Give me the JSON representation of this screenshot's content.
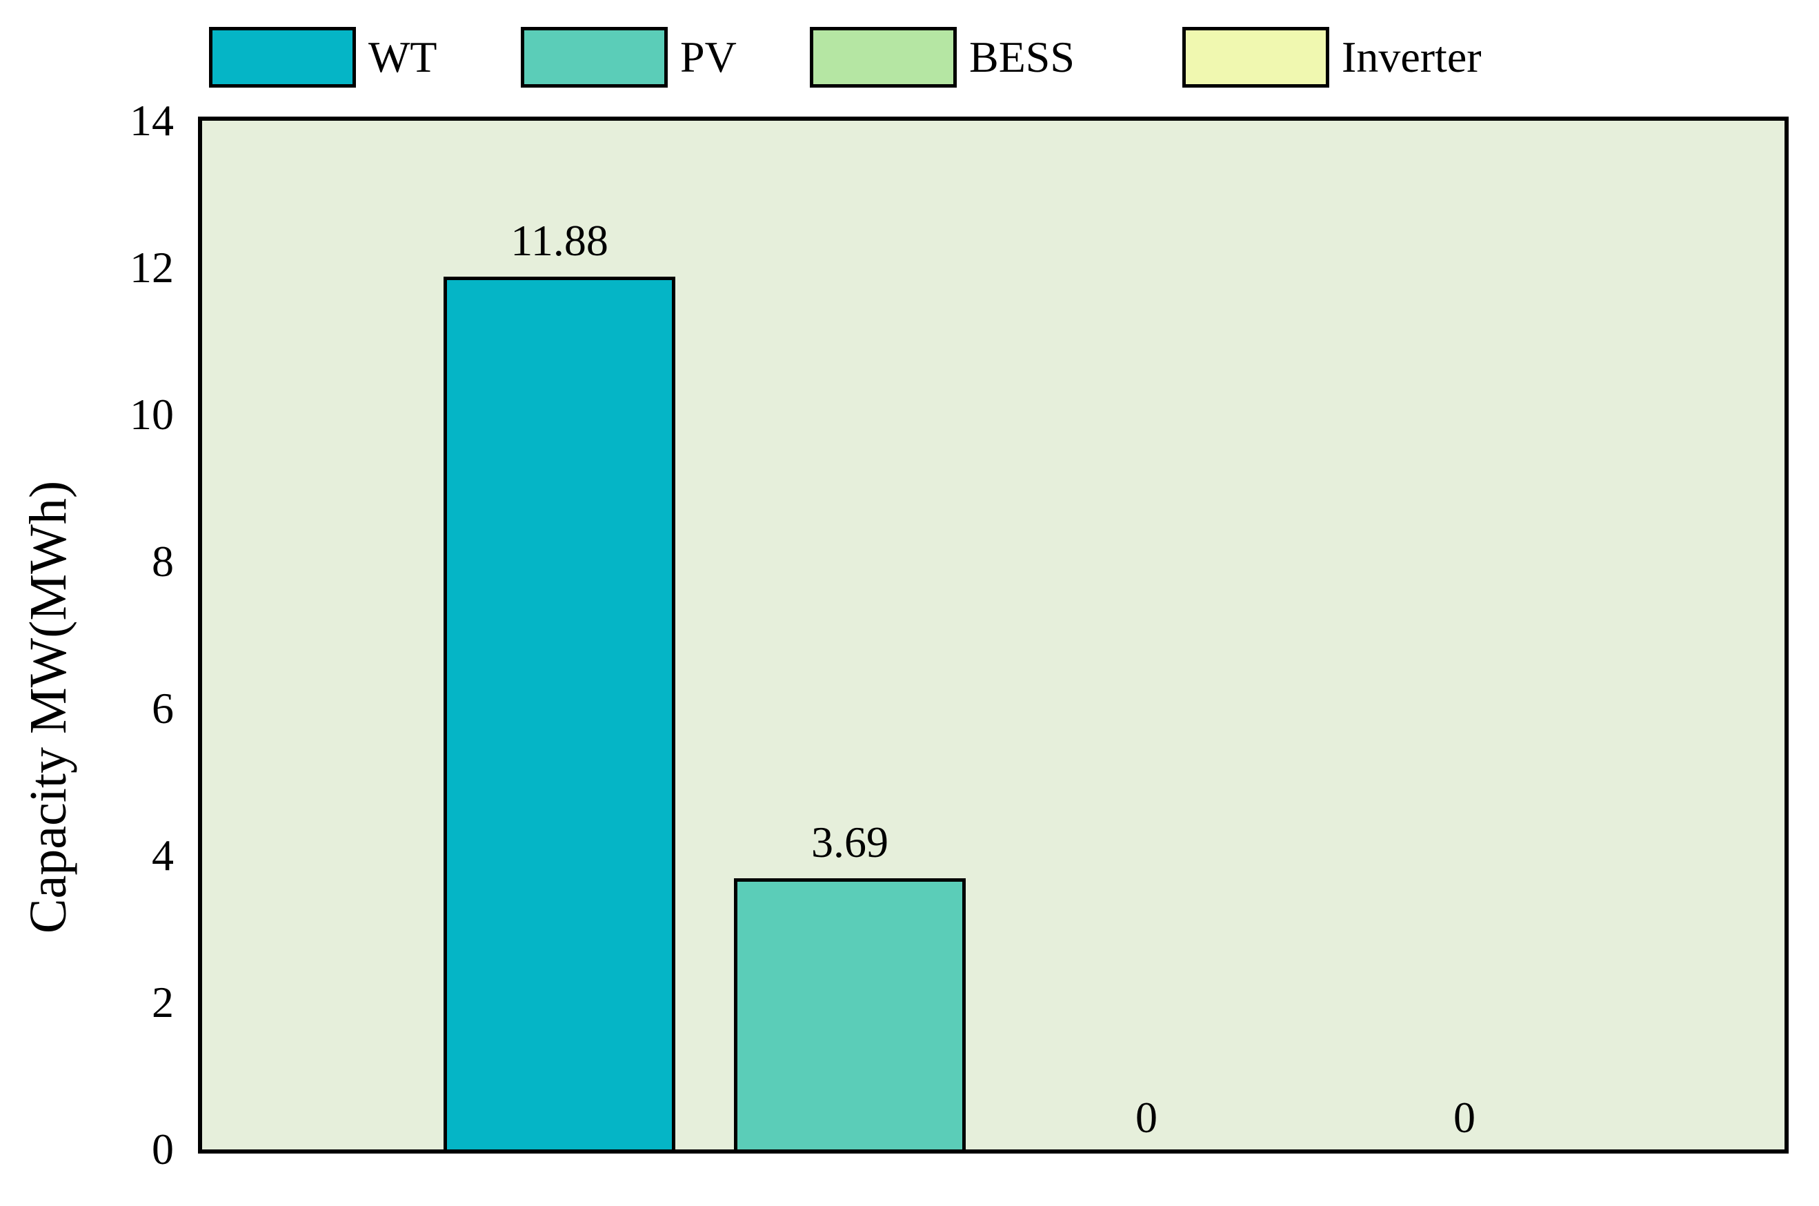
{
  "figure": {
    "background_color": "#ffffff",
    "plot_background_color": "#e6efdb",
    "axis_color": "#000000"
  },
  "legend": {
    "items": [
      {
        "label": "WT",
        "color": "#05b5c6"
      },
      {
        "label": "PV",
        "color": "#5bcdb8"
      },
      {
        "label": "BESS",
        "color": "#b5e6a3"
      },
      {
        "label": "Inverter",
        "color": "#f0f8b0"
      }
    ]
  },
  "y_axis": {
    "label": "Capacity MW(MWh)",
    "tick_labels": [
      "0",
      "2",
      "4",
      "6",
      "8",
      "10",
      "12",
      "14"
    ]
  },
  "chart_data": {
    "type": "bar",
    "categories": [
      "WT",
      "PV",
      "BESS",
      "Inverter"
    ],
    "values": [
      11.88,
      3.69,
      0,
      0
    ],
    "bar_labels": [
      "11.88",
      "3.69",
      "0",
      "0"
    ],
    "bar_colors": [
      "#05b5c6",
      "#5bcdb8",
      "#b5e6a3",
      "#f0f8b0"
    ],
    "title": "",
    "xlabel": "",
    "ylabel": "Capacity MW(MWh)",
    "ylim": [
      0,
      14
    ],
    "yticks": [
      0,
      2,
      4,
      6,
      8,
      10,
      12,
      14
    ],
    "grid": false,
    "legend_position": "top",
    "bar_edge_color": "#000000",
    "plot_background": "#e6efdb"
  }
}
